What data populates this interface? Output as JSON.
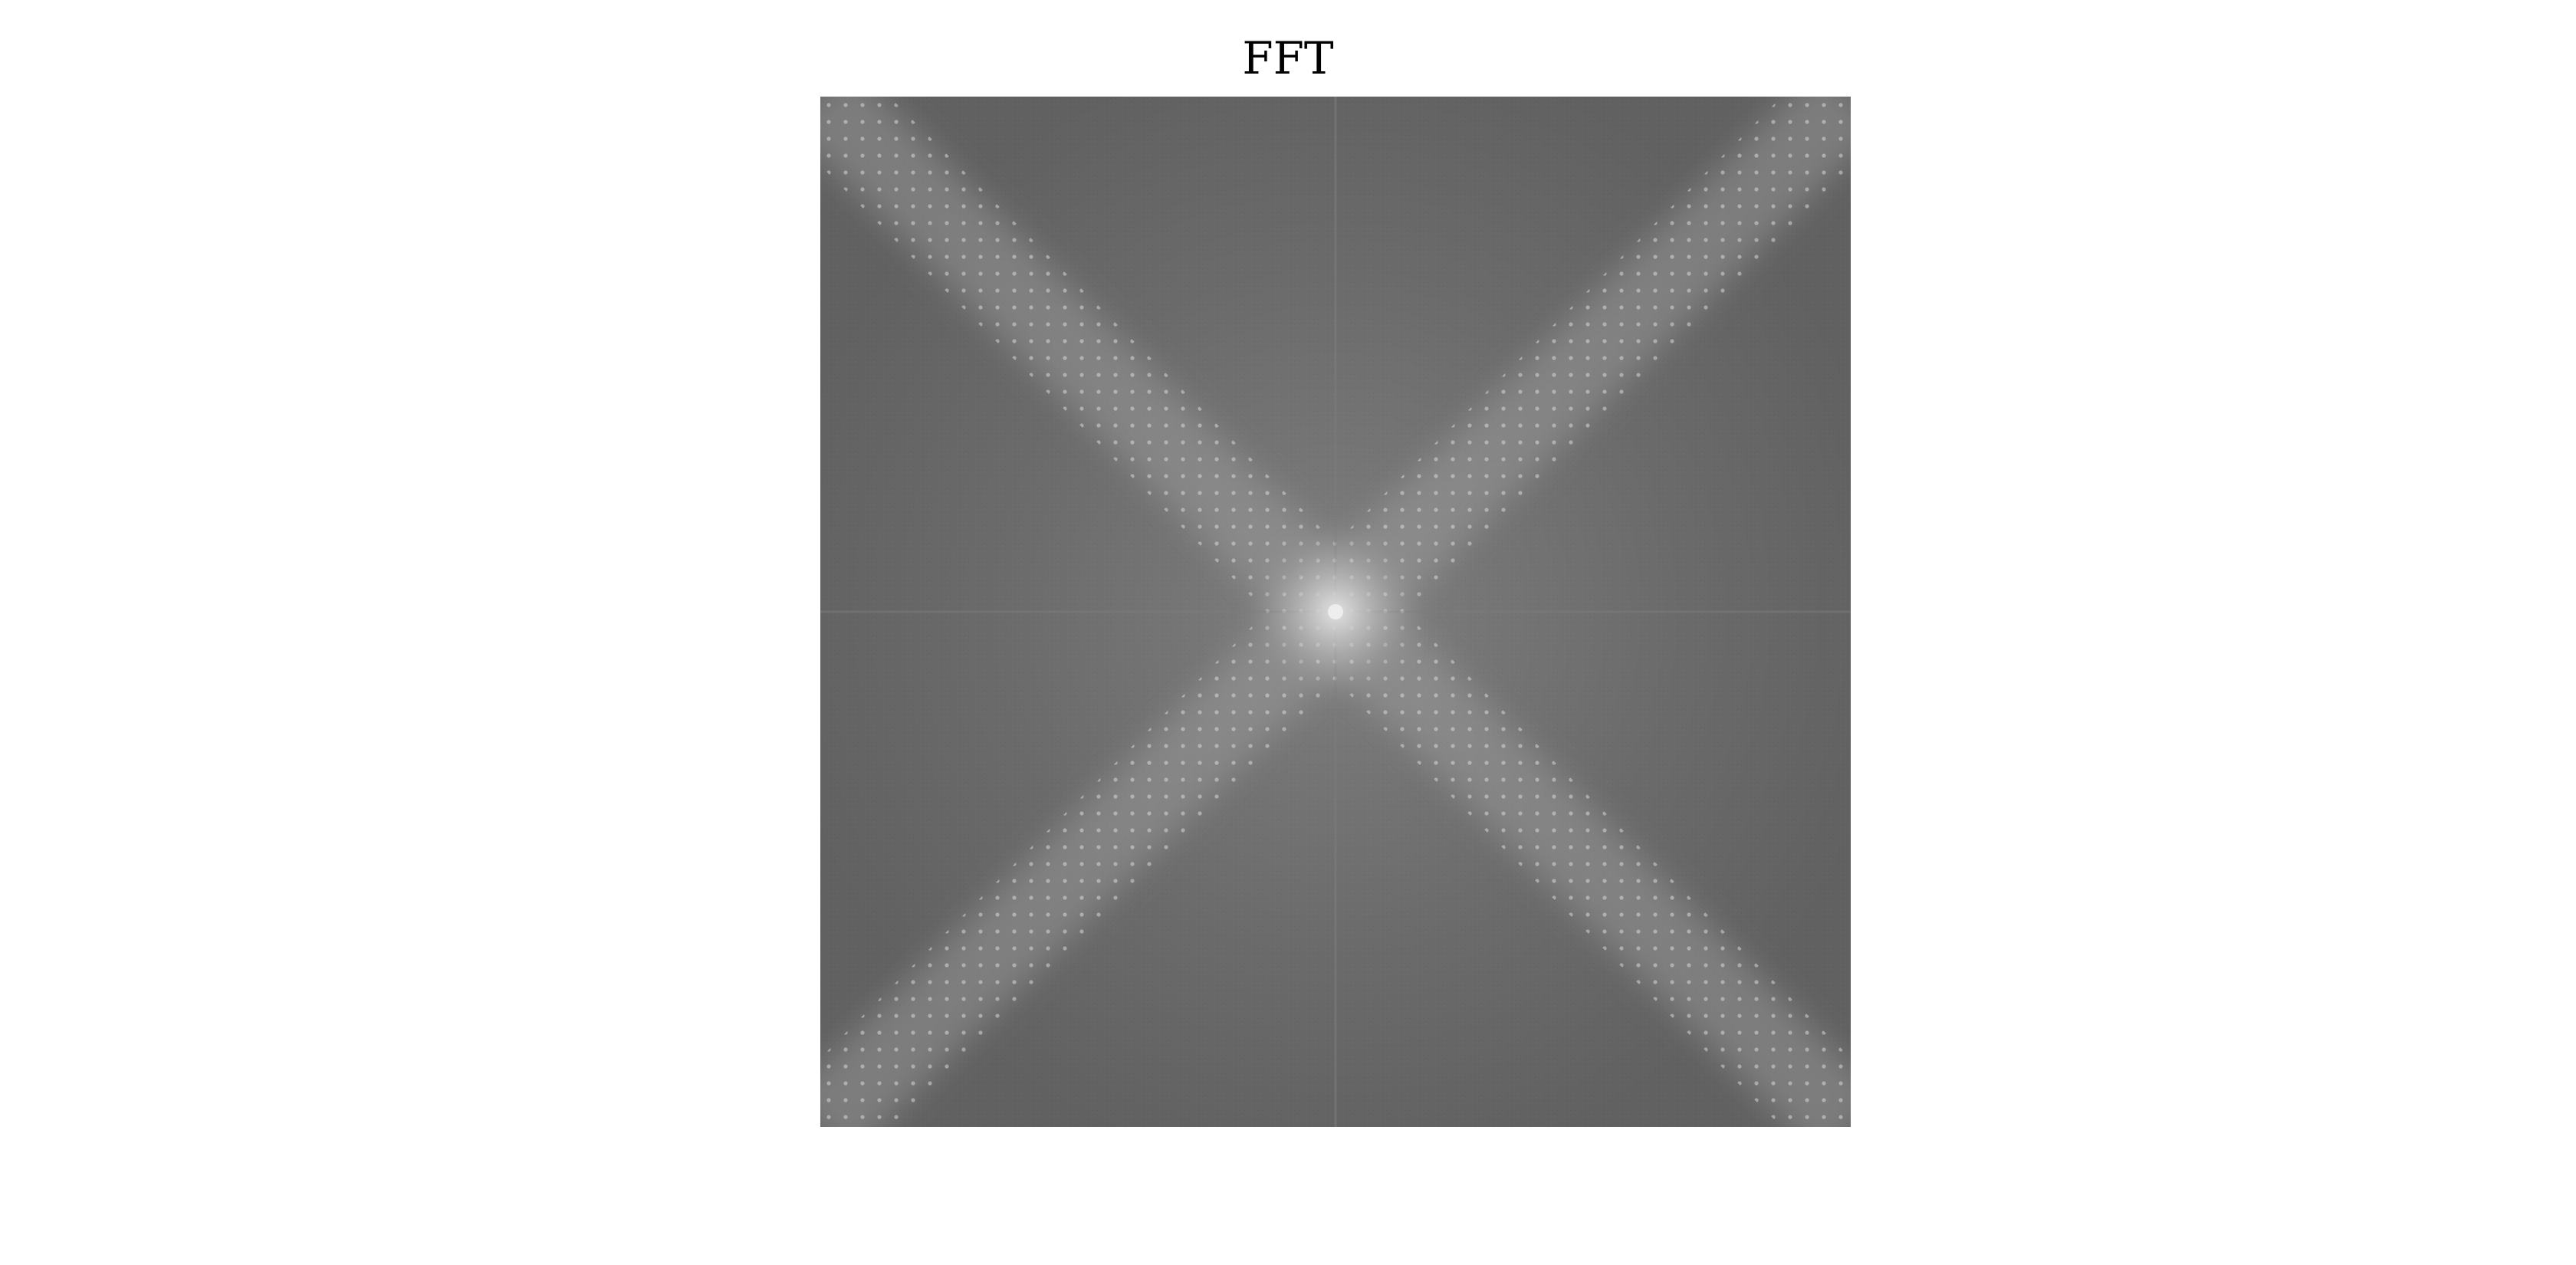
{
  "title": "FFT",
  "image": {
    "colormap": "gray",
    "background_gray": "#666666",
    "spectrum_peak_gray": "#d8d8d8",
    "spectrum_floor_gray": "#5c5c5c"
  }
}
